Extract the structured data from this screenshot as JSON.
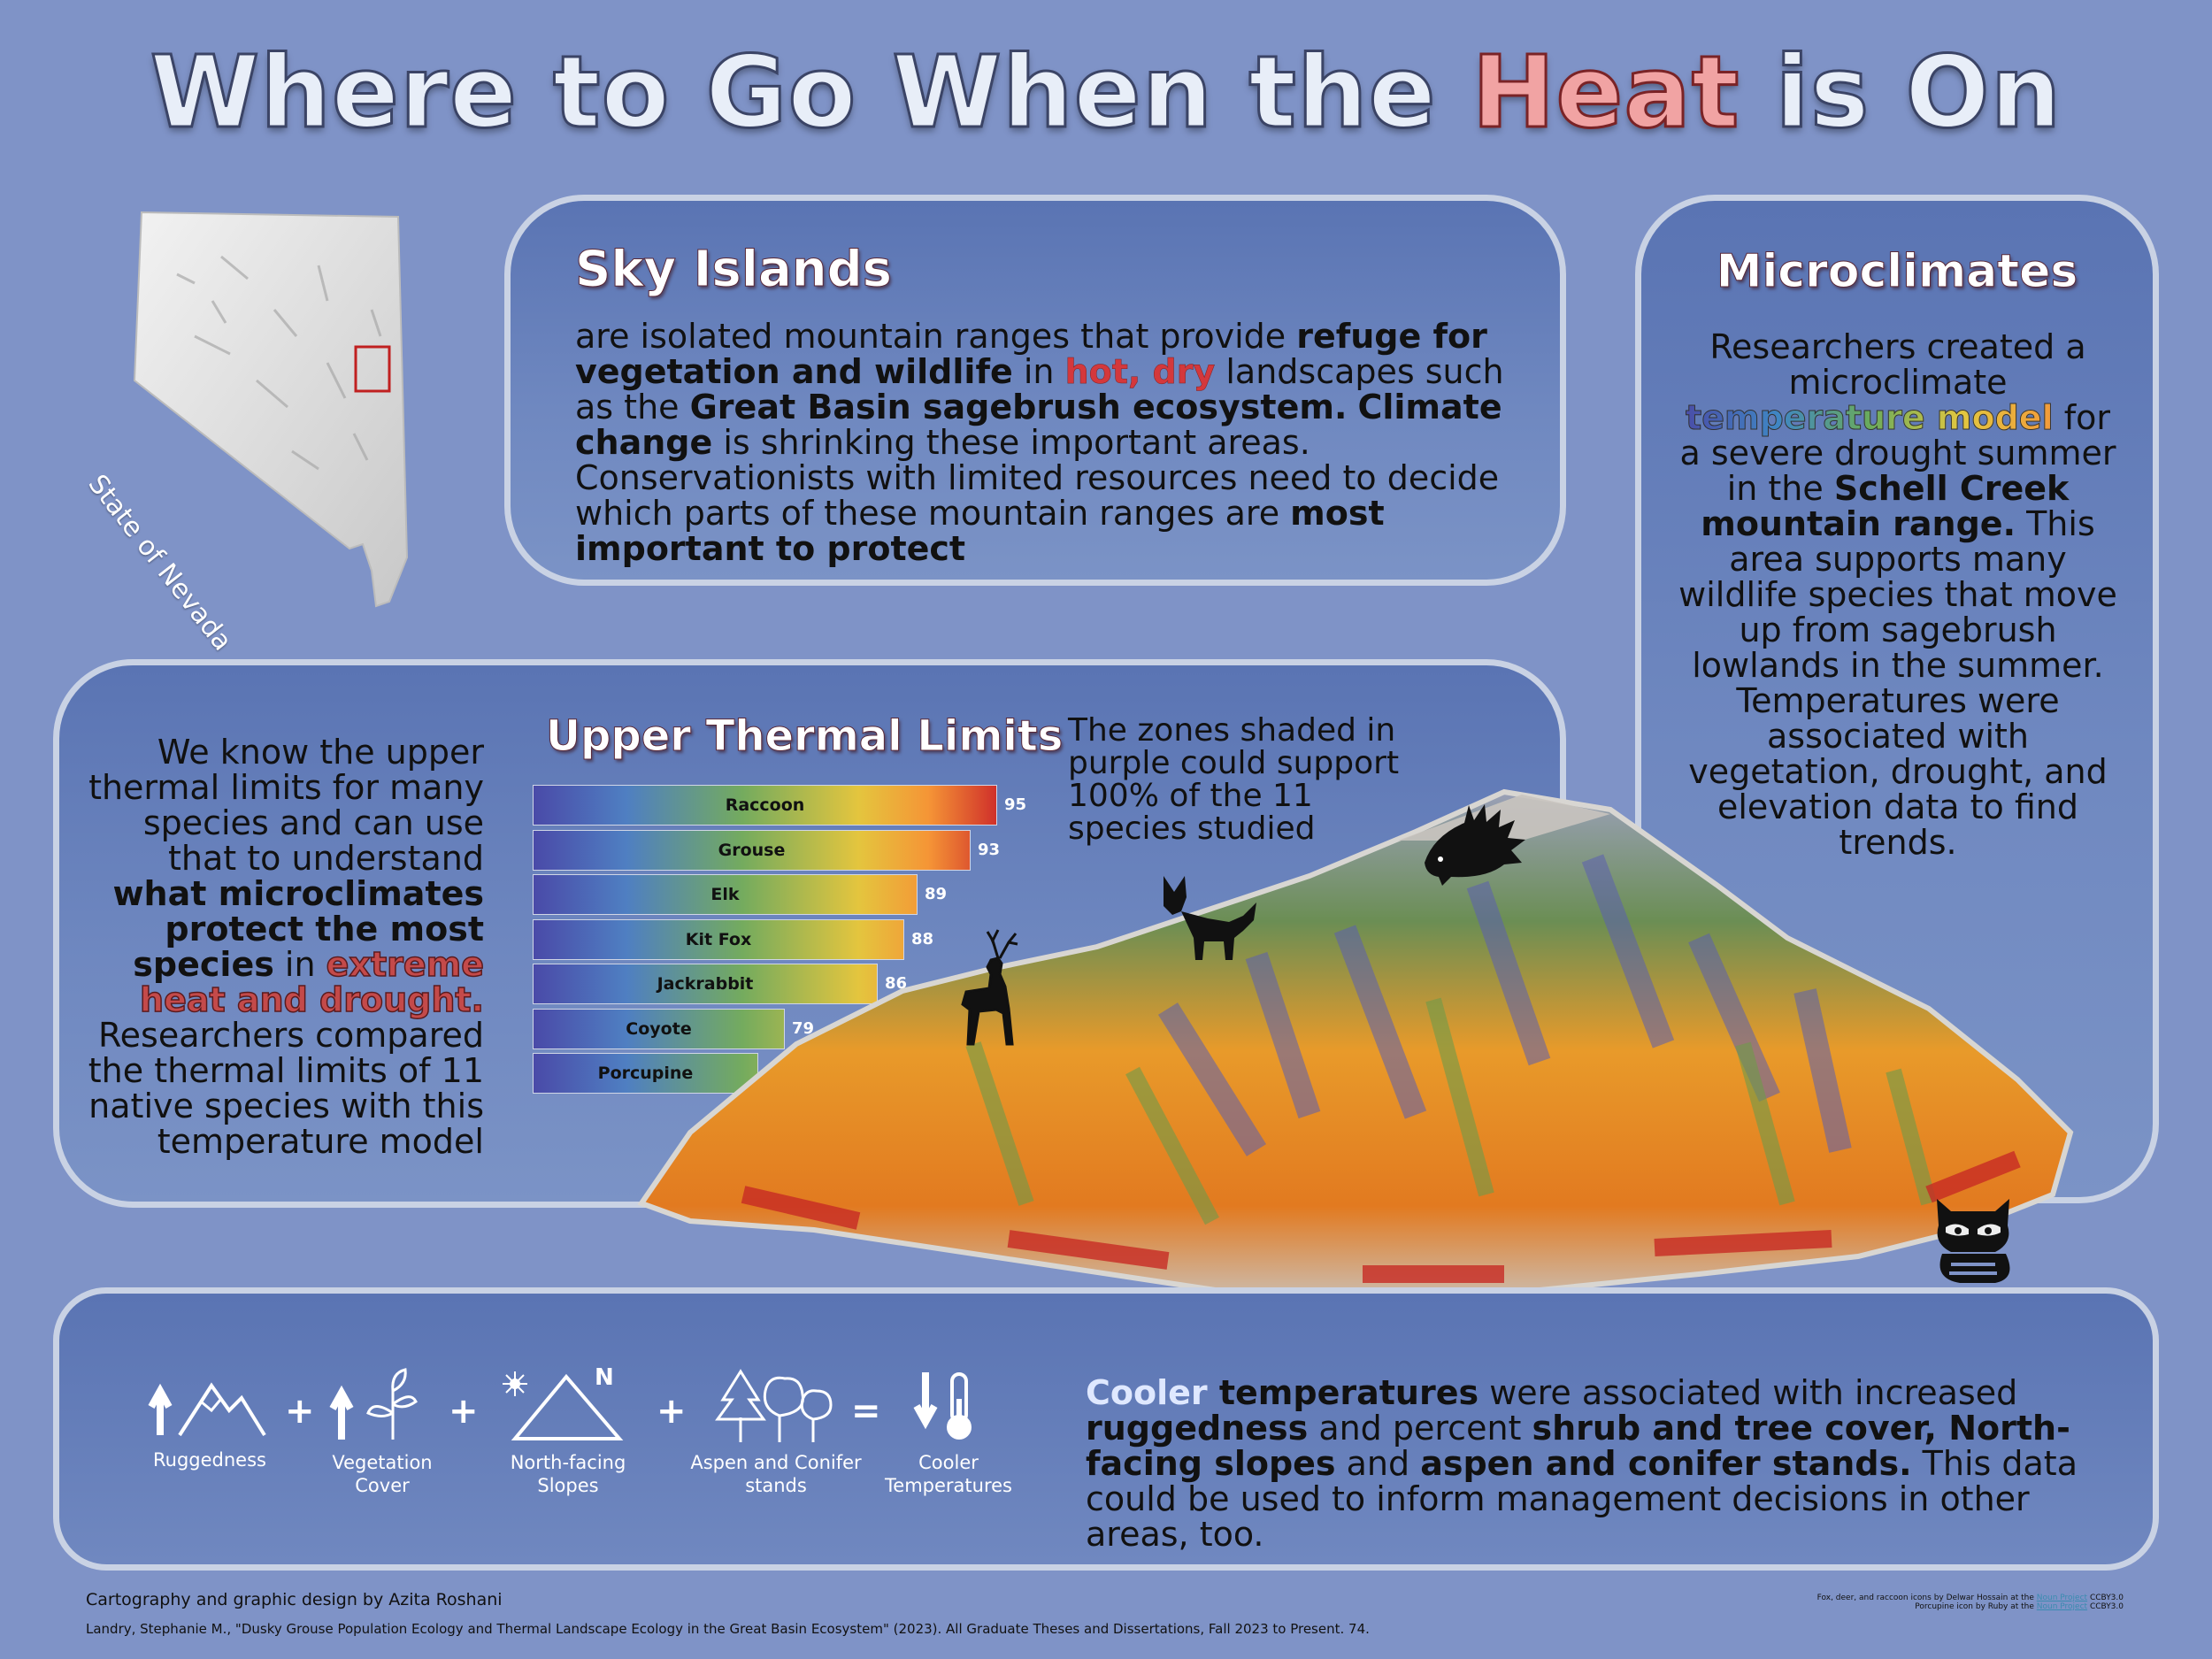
{
  "title": {
    "part1": "Where to Go When the ",
    "highlight": "Heat",
    "part2": " is On"
  },
  "nevada": {
    "label": "State of Nevada"
  },
  "sky_islands": {
    "title": "Sky Islands",
    "t1": "are isolated mountain ranges that provide ",
    "b1": "refuge for vegetation and wildlife",
    "t2": " in ",
    "r1": "hot, dry",
    "t3": " landscapes such as the ",
    "b2": "Great Basin sagebrush ecosystem.",
    "t4": " ",
    "b3": "Climate change",
    "t5": " is shrinking these important areas. Conservationists with limited resources need to decide which parts of these mountain ranges are ",
    "b4": "most important to protect"
  },
  "microclimates": {
    "title": "Microclimates",
    "t1": "Researchers created a microclimate ",
    "rb": "temperature model",
    "t2": " for a severe drought summer in the ",
    "b1": "Schell Creek mountain range.",
    "t3": " This area supports many wildlife species that move up from sagebrush lowlands in the summer. Temperatures were associated with vegetation, drought, and elevation data to find trends."
  },
  "thermal": {
    "text1": "We know the upper thermal limits for many species and can use that to understand ",
    "b1": "what microclimates protect the most species",
    "t2": " in ",
    "r1": "extreme heat and drought.",
    "t3": " Researchers compared the thermal limits of 11 native species with this temperature model",
    "title": "Upper Thermal Limits",
    "zones": "The zones shaded in purple could support 100% of the 11 species studied"
  },
  "chart_data": {
    "type": "bar",
    "title": "Upper Thermal Limits",
    "categories": [
      "Raccoon",
      "Grouse",
      "Elk",
      "Kit Fox",
      "Jackrabbit",
      "Coyote",
      "Porcupine"
    ],
    "values": [
      95,
      93,
      89,
      88,
      86,
      79,
      77
    ],
    "orientation": "horizontal"
  },
  "legend": {
    "items": [
      {
        "label": "Ruggedness",
        "icon": "up-arrow-mountain-icon"
      },
      {
        "label": "Vegetation Cover",
        "icon": "up-arrow-sprout-icon"
      },
      {
        "label": "North-facing Slopes",
        "icon": "north-slope-triangle-icon"
      },
      {
        "label": "Aspen and Conifer stands",
        "icon": "trees-icon"
      },
      {
        "label": "Cooler Temperatures",
        "icon": "down-arrow-thermometer-icon"
      }
    ],
    "plus": "+",
    "equals": "=",
    "north": "N"
  },
  "conclusion": {
    "c1": "Cooler",
    "b1": " temperatures",
    "t1": " were associated with increased ",
    "b2": "ruggedness",
    "t2": " and percent ",
    "b3": "shrub and tree cover, North-facing slopes",
    "t3": " and ",
    "b4": "aspen and conifer stands.",
    "t4": " This data could be used to inform management decisions in other areas, too."
  },
  "footer": {
    "credit": "Cartography and graphic design by Azita Roshani",
    "citation": "Landry, Stephanie M., \"Dusky Grouse Population Ecology and Thermal Landscape Ecology in the Great Basin Ecosystem\" (2023). All Graduate Theses and Dissertations, Fall 2023 to Present. 74.",
    "icons1a": "Fox, deer, and raccoon icons by Delwar Hossain at the ",
    "icons1link": "Noun Project",
    "icons1b": " CCBY3.0",
    "icons2a": "Porcupine icon by Ruby at the ",
    "icons2link": "Noun Project",
    "icons2b": " CCBY3.0"
  },
  "colors": {
    "background": "#7f93c7",
    "panel": "#5a74b3",
    "accent_red": "#d4383c",
    "border": "#c9d2e4"
  }
}
